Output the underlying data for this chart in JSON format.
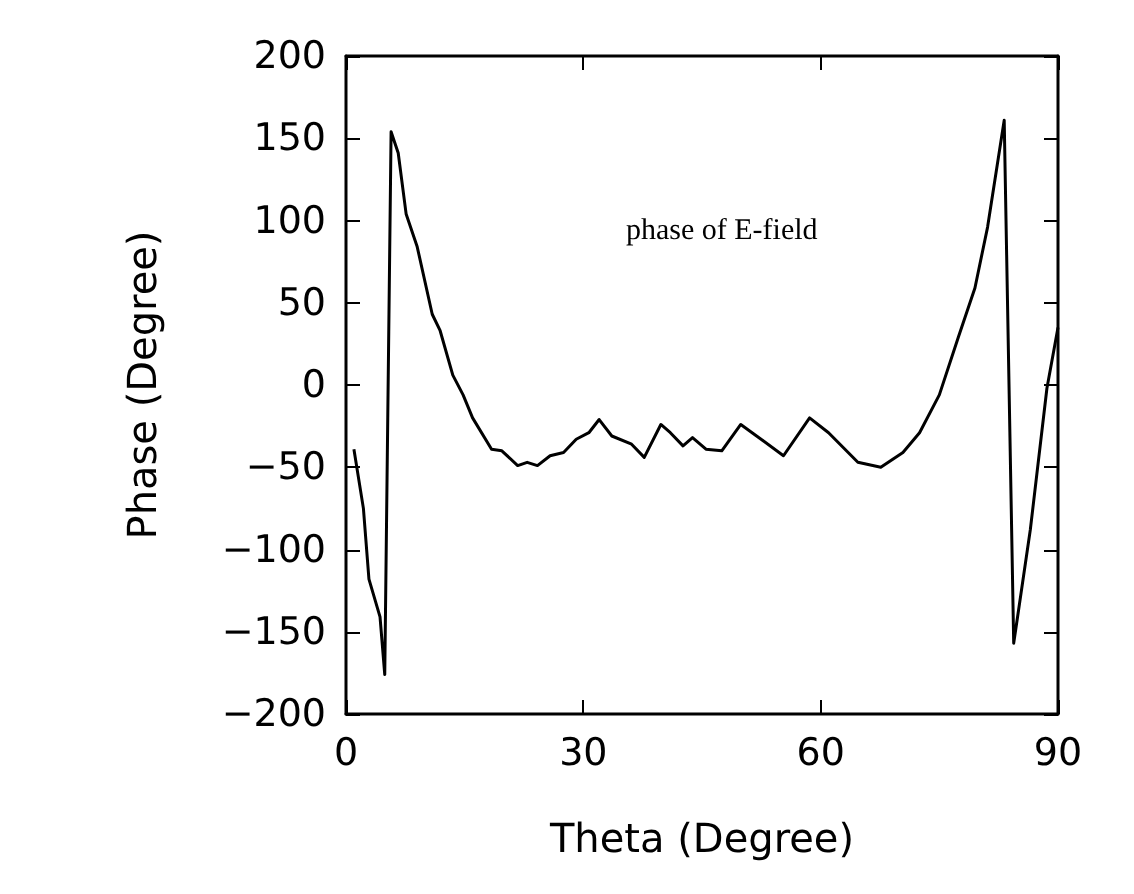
{
  "chart_data": {
    "type": "line",
    "xlabel": "Theta (Degree)",
    "ylabel": "Phase (Degree)",
    "annotations": [
      "phase of E-field"
    ],
    "x": [
      1,
      2.2,
      2.9,
      4.3,
      4.9,
      5.7,
      6.6,
      7.6,
      9,
      10.9,
      11.9,
      13.5,
      14.8,
      16,
      18.4,
      19.7,
      21.7,
      22.9,
      24.2,
      25.8,
      27.5,
      29.1,
      30.7,
      32,
      33.6,
      36.1,
      37.7,
      39.8,
      41,
      42.6,
      43.8,
      45.5,
      47.5,
      49.9,
      51.9,
      55.3,
      58.6,
      61,
      64.7,
      67.6,
      70.4,
      72.5,
      75,
      77.4,
      79.5,
      81.1,
      83.2,
      84.4,
      86.5,
      88.6,
      90
    ],
    "series": [
      {
        "color": "#000000",
        "values": [
          -39,
          -75,
          -118,
          -141,
          -176,
          154,
          141,
          104,
          84,
          43,
          33,
          6,
          -6,
          -20,
          -39,
          -40,
          -49,
          -47,
          -49,
          -43,
          -41,
          -33,
          -29,
          -21,
          -31,
          -36,
          -44,
          -24,
          -29,
          -37,
          -32,
          -39,
          -40,
          -24,
          -31,
          -43,
          -20,
          -29,
          -47,
          -50,
          -41,
          -29,
          -6,
          29,
          59,
          96,
          161,
          -157,
          -88,
          -2,
          35
        ]
      }
    ],
    "xlim": [
      0,
      90
    ],
    "xticks": [
      0,
      30,
      60,
      90
    ],
    "ylim": [
      -200,
      200
    ],
    "yticks": [
      -200,
      -150,
      -100,
      -50,
      0,
      50,
      100,
      150,
      200
    ],
    "marker": "none",
    "line_style": "solid"
  }
}
